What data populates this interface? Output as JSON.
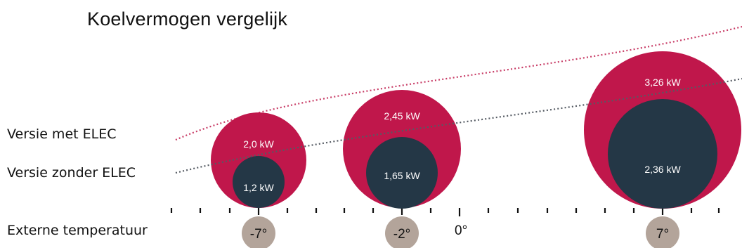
{
  "title": "Koelvermogen vergelijk",
  "labels": {
    "with_elec": "Versie met ELEC",
    "without_elec": "Versie zonder ELEC",
    "external_temperature": "Externe temperatuur"
  },
  "zero_label": "0°",
  "colors": {
    "with_elec": "#c0174b",
    "without_elec": "#243746",
    "temperature_badge": "#b3a49a",
    "with_elec_trend": "#c83c66",
    "without_elec_trend": "#555b63"
  },
  "points": [
    {
      "temp_label": "-7°",
      "with_elec_label": "2,0 kW",
      "without_elec_label": "1,2 kW"
    },
    {
      "temp_label": "-2°",
      "with_elec_label": "2,45 kW",
      "without_elec_label": "1,65 kW"
    },
    {
      "temp_label": "7°",
      "with_elec_label": "3,26 kW",
      "without_elec_label": "2,36 kW"
    }
  ]
}
